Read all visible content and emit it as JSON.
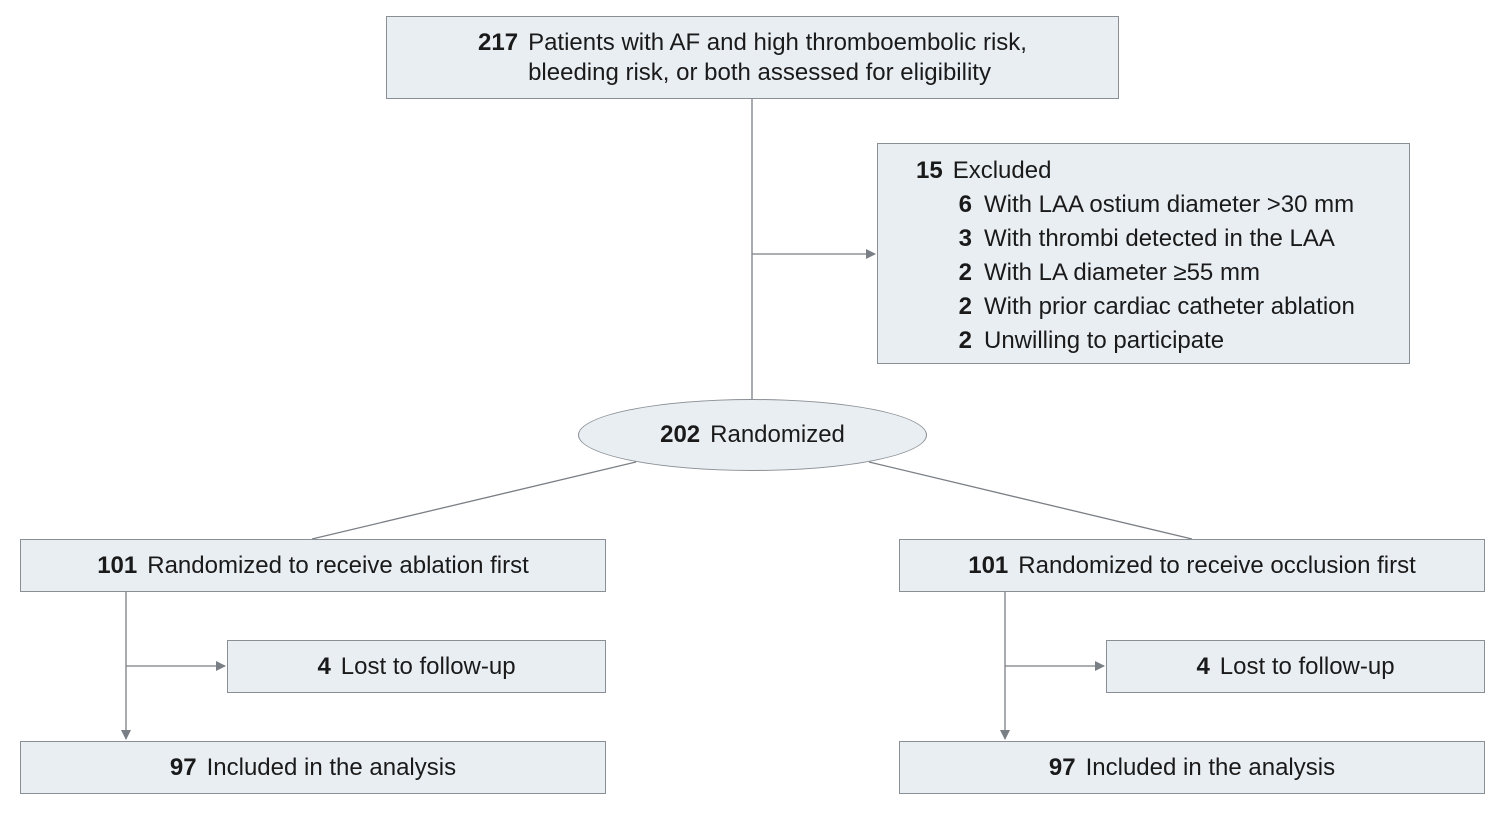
{
  "eligibility": {
    "count": "217",
    "line1": "Patients with AF and high thromboembolic risk,",
    "line2": "bleeding risk, or both assessed for eligibility"
  },
  "excluded": {
    "count": "15",
    "label": "Excluded",
    "reasons": [
      {
        "count": "6",
        "label": "With LAA ostium diameter >30 mm"
      },
      {
        "count": "3",
        "label": "With thrombi detected in the LAA"
      },
      {
        "count": "2",
        "label": "With LA diameter ≥55 mm"
      },
      {
        "count": "2",
        "label": "With prior cardiac catheter ablation"
      },
      {
        "count": "2",
        "label": "Unwilling to participate"
      }
    ]
  },
  "randomized": {
    "count": "202",
    "label": "Randomized"
  },
  "arms": [
    {
      "count": "101",
      "label": "Randomized to receive ablation first",
      "lost": {
        "count": "4",
        "label": "Lost to follow-up"
      },
      "included": {
        "count": "97",
        "label": "Included in the analysis"
      }
    },
    {
      "count": "101",
      "label": "Randomized to receive occlusion first",
      "lost": {
        "count": "4",
        "label": "Lost to follow-up"
      },
      "included": {
        "count": "97",
        "label": "Included in the analysis"
      }
    }
  ],
  "colors": {
    "box_fill": "#e9eef3",
    "box_border": "#8a8f95",
    "connector": "#7a7f85"
  }
}
